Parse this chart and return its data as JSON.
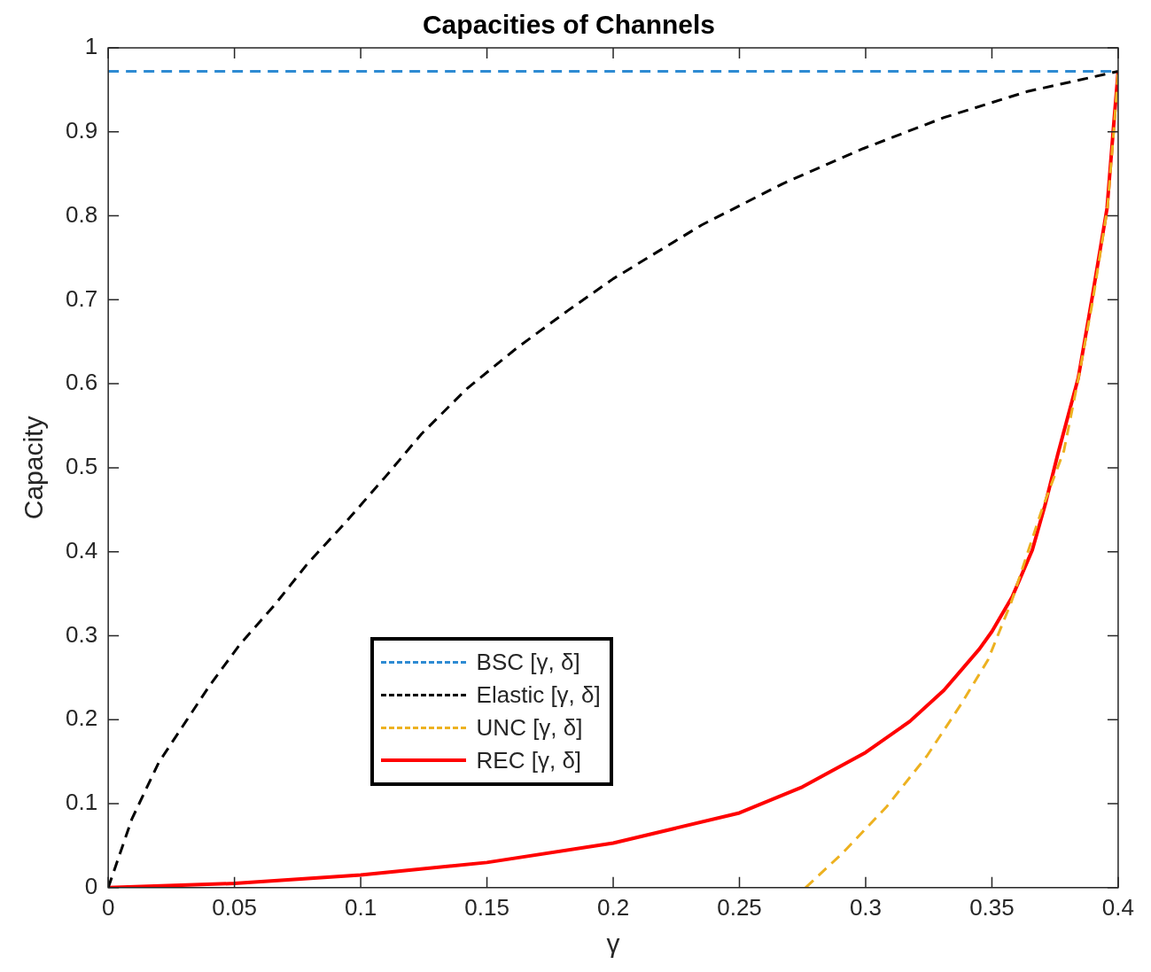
{
  "chart_data": {
    "type": "line",
    "title": "Capacities of Channels",
    "xlabel": "γ",
    "ylabel": "Capacity",
    "xlim": [
      0,
      0.4
    ],
    "xticks": [
      0,
      0.05,
      0.1,
      0.15,
      0.2,
      0.25,
      0.3,
      0.35,
      0.4
    ],
    "ylim": [
      0,
      1
    ],
    "yticks": [
      0,
      0.1,
      0.2,
      0.3,
      0.4,
      0.5,
      0.6,
      0.7,
      0.8,
      0.9,
      1
    ],
    "grid": false,
    "legend": "bottom",
    "marker": "none",
    "series": [
      {
        "name": "BSC [γ, δ]",
        "color": "#2e8bd3",
        "line_style": "dashed",
        "x": [
          0,
          0.4
        ],
        "values": [
          0.972,
          0.972
        ]
      },
      {
        "name": "Elastic [γ, δ]",
        "color": "#000000",
        "line_style": "dashed",
        "x": [
          0,
          0.0094,
          0.02,
          0.031,
          0.04,
          0.052,
          0.066,
          0.079,
          0.094,
          0.11,
          0.124,
          0.142,
          0.162,
          0.182,
          0.2,
          0.235,
          0.267,
          0.299,
          0.331,
          0.364,
          0.4
        ],
        "values": [
          0,
          0.082,
          0.149,
          0.199,
          0.24,
          0.289,
          0.337,
          0.386,
          0.435,
          0.49,
          0.54,
          0.594,
          0.643,
          0.687,
          0.725,
          0.789,
          0.838,
          0.88,
          0.917,
          0.948,
          0.972
        ]
      },
      {
        "name": "UNC [γ, δ]",
        "color": "#edb120",
        "line_style": "dashed",
        "x": [
          0.2762,
          0.2908,
          0.3082,
          0.3243,
          0.3377,
          0.3484,
          0.3578,
          0.3645,
          0.3699,
          0.3785,
          0.3845,
          0.39,
          0.3958,
          0.3985,
          0.4
        ],
        "values": [
          0,
          0.041,
          0.096,
          0.157,
          0.218,
          0.271,
          0.341,
          0.402,
          0.451,
          0.52,
          0.61,
          0.7,
          0.81,
          0.91,
          0.972
        ]
      },
      {
        "name": "REC [γ, δ]",
        "color": "#ff0000",
        "line_style": "solid",
        "x": [
          0,
          0.05,
          0.1,
          0.15,
          0.2,
          0.25,
          0.275,
          0.3,
          0.3175,
          0.331,
          0.345,
          0.35,
          0.358,
          0.366,
          0.371,
          0.376,
          0.3842,
          0.3895,
          0.3956,
          0.3983,
          0.4
        ],
        "values": [
          0,
          0.005,
          0.015,
          0.03,
          0.053,
          0.089,
          0.12,
          0.161,
          0.198,
          0.235,
          0.284,
          0.305,
          0.346,
          0.402,
          0.455,
          0.515,
          0.607,
          0.699,
          0.809,
          0.911,
          0.972
        ]
      }
    ]
  }
}
